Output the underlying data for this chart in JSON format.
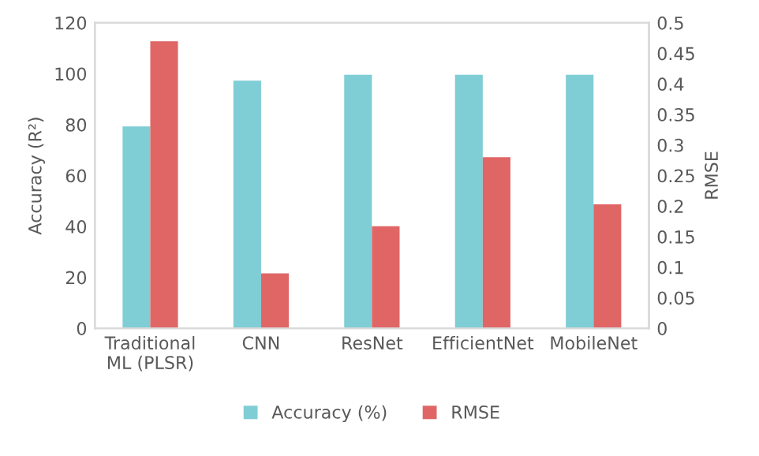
{
  "chart_data": {
    "type": "bar",
    "categories": [
      "Traditional\nML (PLSR)",
      "CNN",
      "ResNet",
      "EfficientNet",
      "MobileNet"
    ],
    "ylabel": "Accuracy (R²)",
    "y2label": "RMSE",
    "series": [
      {
        "name": "Accuracy (%)",
        "color": "#7fcdd5",
        "values": [
          79.3,
          97.3,
          99.6,
          99.6,
          99.6
        ]
      },
      {
        "name": "RMSE",
        "color": "#e06666",
        "axis": "y2",
        "values": [
          0.47,
          0.09,
          0.167,
          0.28,
          0.203
        ]
      }
    ],
    "ylim": [
      0,
      120
    ],
    "yticks": [
      0,
      20,
      40,
      60,
      80,
      100,
      120
    ],
    "y2lim": [
      0,
      0.5
    ],
    "y2ticks": [
      0,
      0.05,
      0.1,
      0.15,
      0.2,
      0.25,
      0.3,
      0.35,
      0.4,
      0.45,
      0.5
    ],
    "grid": false,
    "legend": "bottom"
  }
}
